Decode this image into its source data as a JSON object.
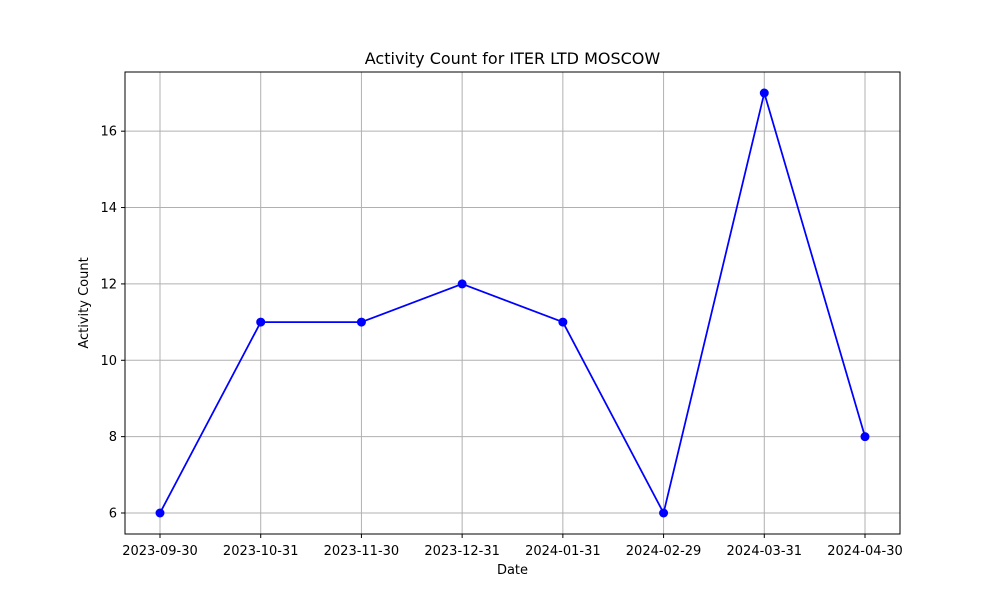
{
  "chart_data": {
    "type": "line",
    "title": "Activity Count for ITER LTD MOSCOW",
    "xlabel": "Date",
    "ylabel": "Activity Count",
    "categories": [
      "2023-09-30",
      "2023-10-31",
      "2023-11-30",
      "2023-12-31",
      "2024-01-31",
      "2024-02-29",
      "2024-03-31",
      "2024-04-30"
    ],
    "series": [
      {
        "values": [
          6,
          11,
          11,
          12,
          11,
          6,
          17,
          8
        ],
        "color": "#0000ff",
        "marker": "circle"
      }
    ],
    "ylim": [
      5.45,
      17.55
    ],
    "yticks": [
      6,
      8,
      10,
      12,
      14,
      16
    ],
    "grid": true,
    "grid_color": "#b0b0b0"
  }
}
